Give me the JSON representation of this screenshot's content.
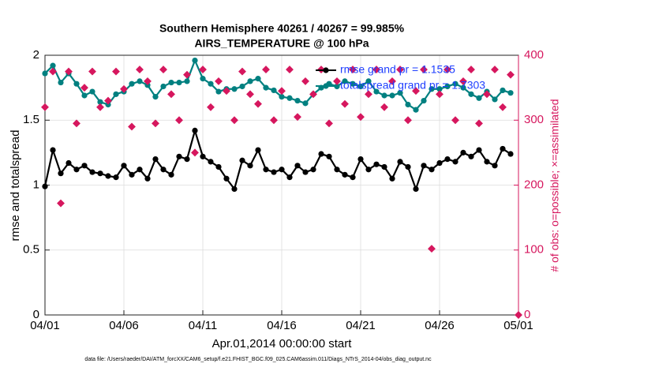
{
  "chart_data": {
    "type": "line",
    "title": "Southern Hemisphere 40261 / 40267 = 99.985%",
    "subtitle": "AIRS_TEMPERATURE @ 100 hPa",
    "x_label": "Apr.01,2014 00:00:00 start",
    "y_label": "rmse and totalspread",
    "y2_label": "# of obs: o=possible; ×=assimilated",
    "footnote": "data file: /Users/raeder/DAI/ATM_forcXX/CAM6_setup/f.e21.FHIST_BGC.f09_025.CAM6assim.011/Diags_NTrS_2014-04/obs_diag_output.nc",
    "x": [
      0,
      0.5,
      1,
      1.5,
      2,
      2.5,
      3,
      3.5,
      4,
      4.5,
      5,
      5.5,
      6,
      6.5,
      7,
      7.5,
      8,
      8.5,
      9,
      9.5,
      10,
      10.5,
      11,
      11.5,
      12,
      12.5,
      13,
      13.5,
      14,
      14.5,
      15,
      15.5,
      16,
      16.5,
      17,
      17.5,
      18,
      18.5,
      19,
      19.5,
      20,
      20.5,
      21,
      21.5,
      22,
      22.5,
      23,
      23.5,
      24,
      24.5,
      25,
      25.5,
      26,
      26.5,
      27,
      27.5,
      28,
      28.5,
      29,
      29.5,
      30
    ],
    "xlim": [
      0,
      30
    ],
    "xticks": [
      {
        "value": 0,
        "label": "04/01"
      },
      {
        "value": 5,
        "label": "04/06"
      },
      {
        "value": 10,
        "label": "04/11"
      },
      {
        "value": 15,
        "label": "04/16"
      },
      {
        "value": 20,
        "label": "04/21"
      },
      {
        "value": 25,
        "label": "04/26"
      },
      {
        "value": 30,
        "label": "05/01"
      }
    ],
    "ylim": [
      0,
      2
    ],
    "yticks": [
      0,
      0.5,
      1,
      1.5,
      2
    ],
    "y2lim": [
      0,
      400
    ],
    "y2ticks": [
      0,
      100,
      200,
      300,
      400
    ],
    "grid": true,
    "legend": "northeast",
    "legend_color": "#1f3fff",
    "series": [
      {
        "name": "rmse grand pr = 1.1535",
        "color": "#000000",
        "values": [
          0.99,
          1.27,
          1.09,
          1.17,
          1.12,
          1.15,
          1.1,
          1.09,
          1.07,
          1.06,
          1.15,
          1.08,
          1.12,
          1.05,
          1.2,
          1.12,
          1.08,
          1.22,
          1.2,
          1.42,
          1.22,
          1.18,
          1.14,
          1.05,
          0.97,
          1.19,
          1.15,
          1.27,
          1.12,
          1.1,
          1.12,
          1.06,
          1.15,
          1.1,
          1.12,
          1.24,
          1.22,
          1.12,
          1.08,
          1.06,
          1.2,
          1.12,
          1.16,
          1.14,
          1.05,
          1.18,
          1.14,
          0.97,
          1.15,
          1.12,
          1.17,
          1.2,
          1.18,
          1.25,
          1.22,
          1.27,
          1.18,
          1.15,
          1.28,
          1.24,
          null
        ]
      },
      {
        "name": "totalspread grand pr = 1.7303",
        "color": "#008080",
        "values": [
          1.86,
          1.92,
          1.79,
          1.86,
          1.78,
          1.69,
          1.72,
          1.64,
          1.62,
          1.7,
          1.72,
          1.78,
          1.8,
          1.77,
          1.68,
          1.76,
          1.79,
          1.79,
          1.8,
          1.96,
          1.82,
          1.78,
          1.72,
          1.74,
          1.74,
          1.76,
          1.8,
          1.82,
          1.75,
          1.73,
          1.68,
          1.67,
          1.65,
          1.63,
          1.7,
          1.75,
          1.78,
          1.76,
          1.8,
          1.78,
          1.76,
          1.8,
          1.72,
          1.69,
          1.69,
          1.71,
          1.62,
          1.58,
          1.65,
          1.74,
          1.74,
          1.76,
          1.78,
          1.75,
          1.7,
          1.67,
          1.72,
          1.66,
          1.73,
          1.71,
          null
        ]
      },
      {
        "color": "#d6175e",
        "axis": "y2",
        "values": [
          320,
          375,
          172,
          375,
          295,
          350,
          375,
          320,
          330,
          375,
          348,
          290,
          378,
          360,
          295,
          378,
          340,
          300,
          370,
          250,
          378,
          320,
          360,
          345,
          300,
          375,
          340,
          325,
          378,
          300,
          345,
          378,
          305,
          360,
          340,
          378,
          295,
          360,
          325,
          378,
          305,
          340,
          378,
          320,
          360,
          378,
          300,
          345,
          378,
          102,
          340,
          378,
          300,
          360,
          378,
          295,
          340,
          378,
          320,
          370,
          0
        ]
      }
    ]
  }
}
